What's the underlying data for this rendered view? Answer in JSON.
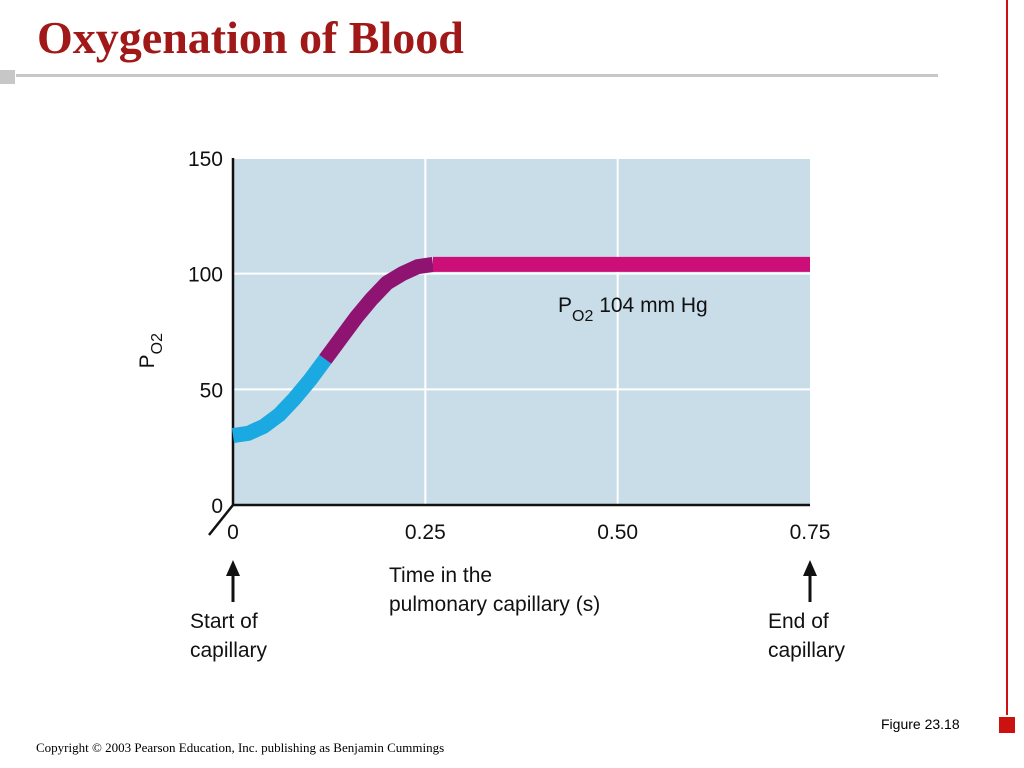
{
  "slide": {
    "title": "Oxygenation of Blood",
    "figure_label": "Figure 23.18",
    "copyright": "Copyright © 2003 Pearson Education, Inc. publishing as Benjamin Cummings"
  },
  "chart_data": {
    "type": "line",
    "xlabel_line1": "Time in the",
    "xlabel_line2": "pulmonary capillary (s)",
    "ylabel_main": "P",
    "ylabel_sub": "O2",
    "x_ticks": [
      {
        "value": 0,
        "label": "0"
      },
      {
        "value": 0.25,
        "label": "0.25"
      },
      {
        "value": 0.5,
        "label": "0.50"
      },
      {
        "value": 0.75,
        "label": "0.75"
      }
    ],
    "y_ticks": [
      {
        "value": 0,
        "label": "0"
      },
      {
        "value": 50,
        "label": "50"
      },
      {
        "value": 100,
        "label": "100"
      },
      {
        "value": 150,
        "label": "150"
      }
    ],
    "xlim": [
      0,
      0.75
    ],
    "ylim": [
      0,
      150
    ],
    "grid": true,
    "series": [
      {
        "x": [
          0,
          0.02,
          0.04,
          0.06,
          0.08,
          0.1,
          0.12,
          0.14,
          0.16,
          0.18,
          0.2,
          0.22,
          0.24,
          0.26,
          0.28,
          0.3,
          0.4,
          0.5,
          0.6,
          0.7,
          0.75
        ],
        "y": [
          30,
          31,
          34,
          39,
          46,
          54,
          63,
          72,
          81,
          89,
          96,
          100,
          103,
          104,
          104,
          104,
          104,
          104,
          104,
          104,
          104
        ]
      }
    ],
    "color_segments": [
      {
        "until_x": 0.12,
        "color": "#1aa9e1"
      },
      {
        "until_x": 0.26,
        "color": "#8f1472"
      },
      {
        "until_x": 0.75,
        "color": "#cc0e78"
      }
    ],
    "annotation": {
      "main": "P",
      "sub": "O2",
      "rest": " 104 mm Hg"
    },
    "arrow_labels": [
      {
        "x": 0,
        "line1": "Start of",
        "line2": "capillary"
      },
      {
        "x": 0.75,
        "line1": "End of",
        "line2": "capillary"
      }
    ],
    "colors": {
      "plot_background": "#c9dde9",
      "grid": "#ffffff"
    }
  }
}
